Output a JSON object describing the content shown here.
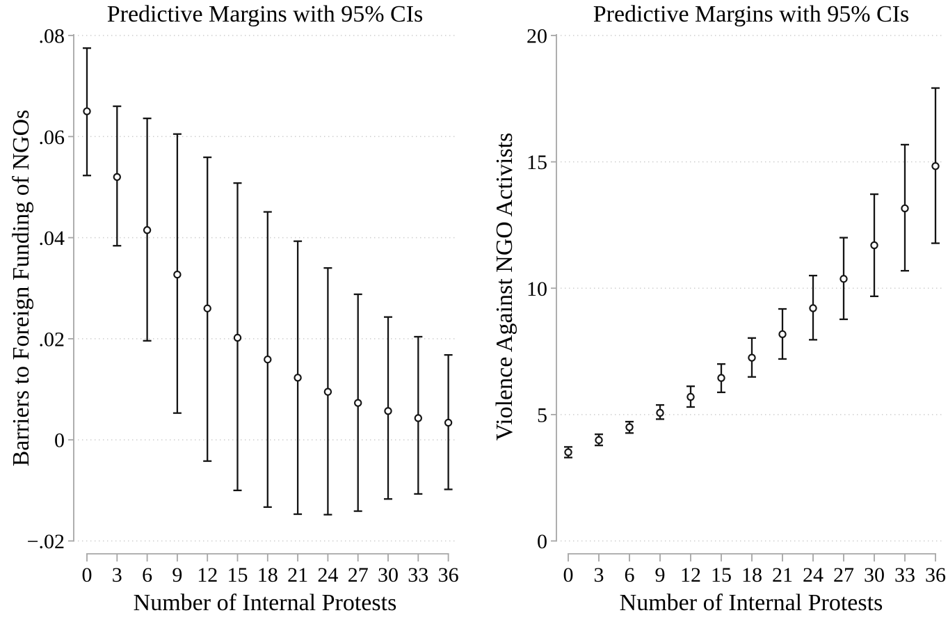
{
  "figure_title": "Predictive margins figure with two panels",
  "colors": {
    "background": "#ffffff",
    "data": "#141414",
    "axis_line": "#a6a6a6",
    "gridline": "#cccccc",
    "text": "#000000"
  },
  "chart_data": [
    {
      "type": "scatter",
      "subtype": "point-estimates-with-95ci-error-bars",
      "title": "Predictive Margins with 95% CIs",
      "xlabel": "Number of Internal Protests",
      "ylabel": "Barriers to Foreign Funding of NGOs",
      "grid": "dotted-horizontal",
      "legend": "none",
      "categories": [
        0,
        3,
        6,
        9,
        12,
        15,
        18,
        21,
        24,
        27,
        30,
        33,
        36
      ],
      "x_tick_labels": [
        "0",
        "3",
        "6",
        "9",
        "12",
        "15",
        "18",
        "21",
        "24",
        "27",
        "30",
        "33",
        "36"
      ],
      "values": [
        0.065,
        0.052,
        0.0415,
        0.0327,
        0.026,
        0.0202,
        0.0159,
        0.0123,
        0.0095,
        0.0073,
        0.0057,
        0.0043,
        0.0034
      ],
      "ci_low": [
        0.0523,
        0.0384,
        0.0196,
        0.0053,
        -0.0042,
        -0.01,
        -0.0133,
        -0.0147,
        -0.0148,
        -0.0141,
        -0.0117,
        -0.0107,
        -0.0098
      ],
      "ci_high": [
        0.0775,
        0.066,
        0.0636,
        0.0605,
        0.0559,
        0.0508,
        0.0451,
        0.0393,
        0.034,
        0.0288,
        0.0243,
        0.0204,
        0.0168
      ],
      "ylim": [
        -0.02,
        0.08
      ],
      "y_tick_values": [
        0.08,
        0.06,
        0.04,
        0.02,
        0,
        -0.02
      ],
      "y_tick_labels": [
        ".08",
        ".06",
        ".04",
        ".02",
        "0",
        "−.02"
      ]
    },
    {
      "type": "scatter",
      "subtype": "point-estimates-with-95ci-error-bars",
      "title": "Predictive Margins with 95% CIs",
      "xlabel": "Number of Internal Protests",
      "ylabel": "Violence Against NGO Activists",
      "grid": "dotted-horizontal",
      "legend": "none",
      "categories": [
        0,
        3,
        6,
        9,
        12,
        15,
        18,
        21,
        24,
        27,
        30,
        33,
        36
      ],
      "x_tick_labels": [
        "0",
        "3",
        "6",
        "9",
        "12",
        "15",
        "18",
        "21",
        "24",
        "27",
        "30",
        "33",
        "36"
      ],
      "values": [
        3.51,
        3.99,
        4.5,
        5.07,
        5.7,
        6.45,
        7.25,
        8.18,
        9.21,
        10.37,
        11.7,
        13.16,
        14.83
      ],
      "ci_low": [
        3.3,
        3.78,
        4.27,
        4.82,
        5.3,
        5.88,
        6.49,
        7.2,
        7.96,
        8.77,
        9.68,
        10.69,
        11.78
      ],
      "ci_high": [
        3.72,
        4.22,
        4.72,
        5.38,
        6.12,
        7.0,
        8.03,
        9.18,
        10.5,
        12.0,
        13.72,
        15.68,
        17.92
      ],
      "ylim": [
        0,
        20
      ],
      "y_tick_values": [
        20,
        15,
        10,
        5,
        0
      ],
      "y_tick_labels": [
        "20",
        "15",
        "10",
        "5",
        "0"
      ]
    }
  ]
}
